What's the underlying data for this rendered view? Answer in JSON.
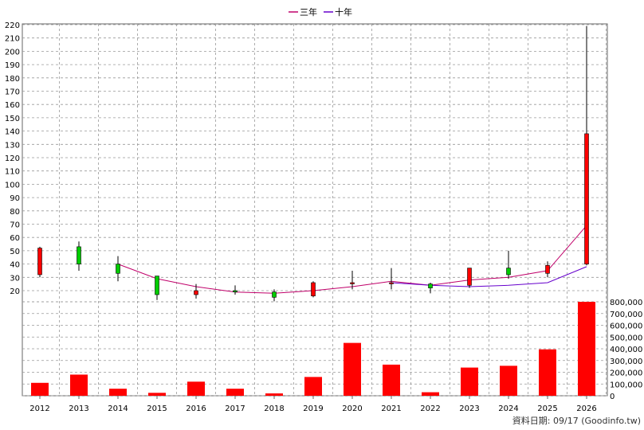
{
  "legend": [
    {
      "label": "三年",
      "color": "#c0006a"
    },
    {
      "label": "十年",
      "color": "#6600cc"
    }
  ],
  "footer": "資料日期: 09/17  (Goodinfo.tw)",
  "colors": {
    "up": "#ff0000",
    "down": "#00cc00",
    "volume": "#ff0000",
    "grid": "#999999"
  },
  "chart_data": [
    {
      "type": "candlestick",
      "categories": [
        "2012",
        "2013",
        "2014",
        "2015",
        "2016",
        "2017",
        "2018",
        "2019",
        "2020",
        "2021",
        "2022",
        "2023",
        "2024",
        "2025",
        "2026"
      ],
      "ohlc": [
        {
          "open": 32,
          "high": 53,
          "low": 30,
          "close": 52
        },
        {
          "open": 53,
          "high": 57,
          "low": 35,
          "close": 40
        },
        {
          "open": 40,
          "high": 46,
          "low": 27,
          "close": 33
        },
        {
          "open": 31,
          "high": 31,
          "low": 13,
          "close": 17
        },
        {
          "open": 17,
          "high": 25,
          "low": 14,
          "close": 20
        },
        {
          "open": 20,
          "high": 24,
          "low": 17,
          "close": 19
        },
        {
          "open": 19,
          "high": 21,
          "low": 12,
          "close": 15
        },
        {
          "open": 16,
          "high": 27,
          "low": 15,
          "close": 26
        },
        {
          "open": 26,
          "high": 35,
          "low": 21,
          "close": 26
        },
        {
          "open": 26,
          "high": 37,
          "low": 21,
          "close": 26
        },
        {
          "open": 25,
          "high": 26,
          "low": 18,
          "close": 22
        },
        {
          "open": 24,
          "high": 37,
          "low": 22,
          "close": 37
        },
        {
          "open": 37,
          "high": 50,
          "low": 29,
          "close": 32
        },
        {
          "open": 33,
          "high": 42,
          "low": 30,
          "close": 39
        },
        {
          "open": 40,
          "high": 219,
          "low": 39,
          "close": 138
        }
      ],
      "series": [
        {
          "name": "三年",
          "values": [
            null,
            null,
            40,
            29,
            23,
            19,
            18,
            20,
            23,
            27,
            24,
            28,
            30,
            35,
            69
          ]
        },
        {
          "name": "十年",
          "values": [
            null,
            null,
            null,
            null,
            null,
            null,
            null,
            null,
            null,
            26,
            24,
            23,
            24,
            26,
            38
          ]
        }
      ],
      "ylim": [
        0,
        220
      ],
      "yticks": [
        20,
        30,
        40,
        50,
        60,
        70,
        80,
        90,
        100,
        110,
        120,
        130,
        140,
        150,
        160,
        170,
        180,
        190,
        200,
        210,
        220
      ],
      "grid": true,
      "legend_position": "top-center"
    },
    {
      "type": "bar",
      "categories": [
        "2012",
        "2013",
        "2014",
        "2015",
        "2016",
        "2017",
        "2018",
        "2019",
        "2020",
        "2021",
        "2022",
        "2023",
        "2024",
        "2025",
        "2026"
      ],
      "values": [
        110000,
        180000,
        60000,
        25000,
        120000,
        60000,
        20000,
        160000,
        450000,
        265000,
        30000,
        240000,
        255000,
        395000,
        800000
      ],
      "ylim": [
        0,
        800000
      ],
      "yticks": [
        "0",
        "100,000",
        "200,000",
        "300,000",
        "400,000",
        "500,000",
        "600,000",
        "700,000",
        "800,000"
      ],
      "grid": true
    }
  ]
}
